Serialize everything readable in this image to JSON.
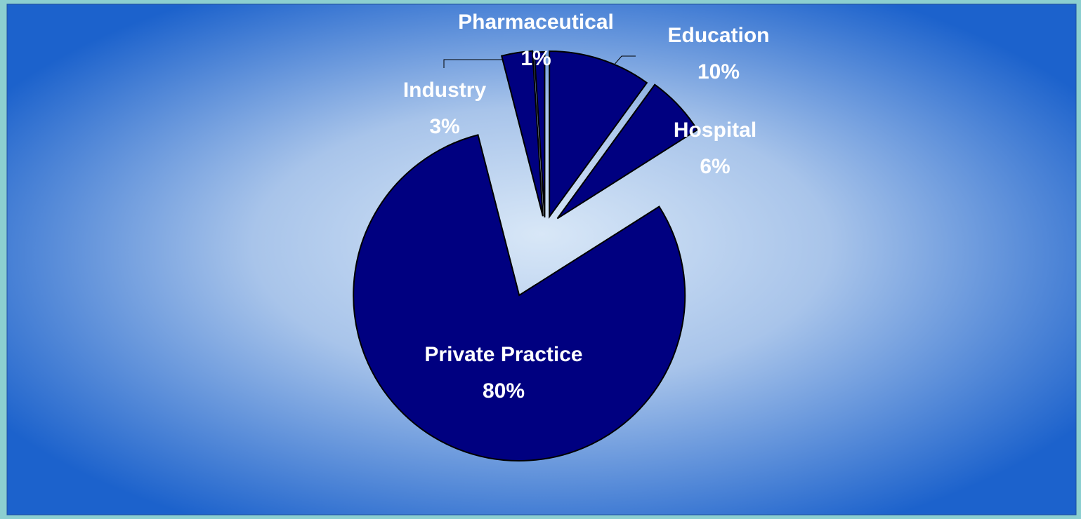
{
  "chart_data": {
    "type": "pie",
    "categories": [
      "Education",
      "Hospital",
      "Private Practice",
      "Industry",
      "Pharmaceutical"
    ],
    "values": [
      10,
      6,
      80,
      3,
      1
    ],
    "value_labels": [
      "10%",
      "6%",
      "80%",
      "3%",
      "1%"
    ],
    "color": "#000080"
  }
}
